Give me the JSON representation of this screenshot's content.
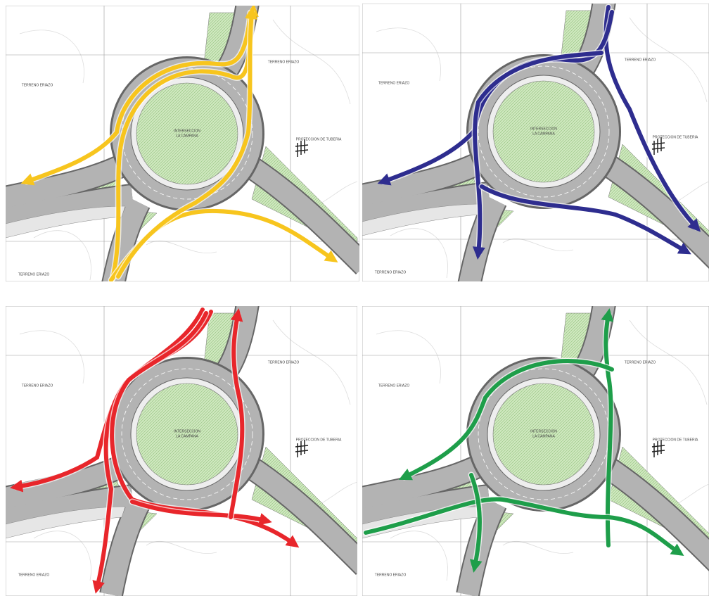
{
  "panels": [
    {
      "color": "#f7c51e",
      "labels": [
        "TERRENO ERIAZO",
        "TERRENO ERIAZO",
        "INTERSECCION",
        "LA CAMPANA",
        "PROTECCION DE TUBERIA",
        "TERRENO ERIAZO"
      ]
    },
    {
      "color": "#2e2d8f",
      "labels": [
        "TERRENO ERIAZO",
        "TERRENO ERIAZO",
        "INTERSECCION",
        "LA CAMPANA",
        "PROTECCION DE TUBERIA",
        "TERRENO ERIAZO"
      ]
    },
    {
      "color": "#e8262b",
      "labels": [
        "TERRENO ERIAZO",
        "TERRENO ERIAZO",
        "INTERSECCION",
        "LA CAMPANA",
        "PROTECCION DE TUBERIA",
        "TERRENO ERIAZO"
      ]
    },
    {
      "color": "#1e9e4a",
      "labels": [
        "TERRENO ERIAZO",
        "TERRENO ERIAZO",
        "INTERSECCION",
        "LA CAMPANA",
        "PROTECCION DE TUBERIA",
        "TERRENO ERIAZO"
      ]
    }
  ]
}
